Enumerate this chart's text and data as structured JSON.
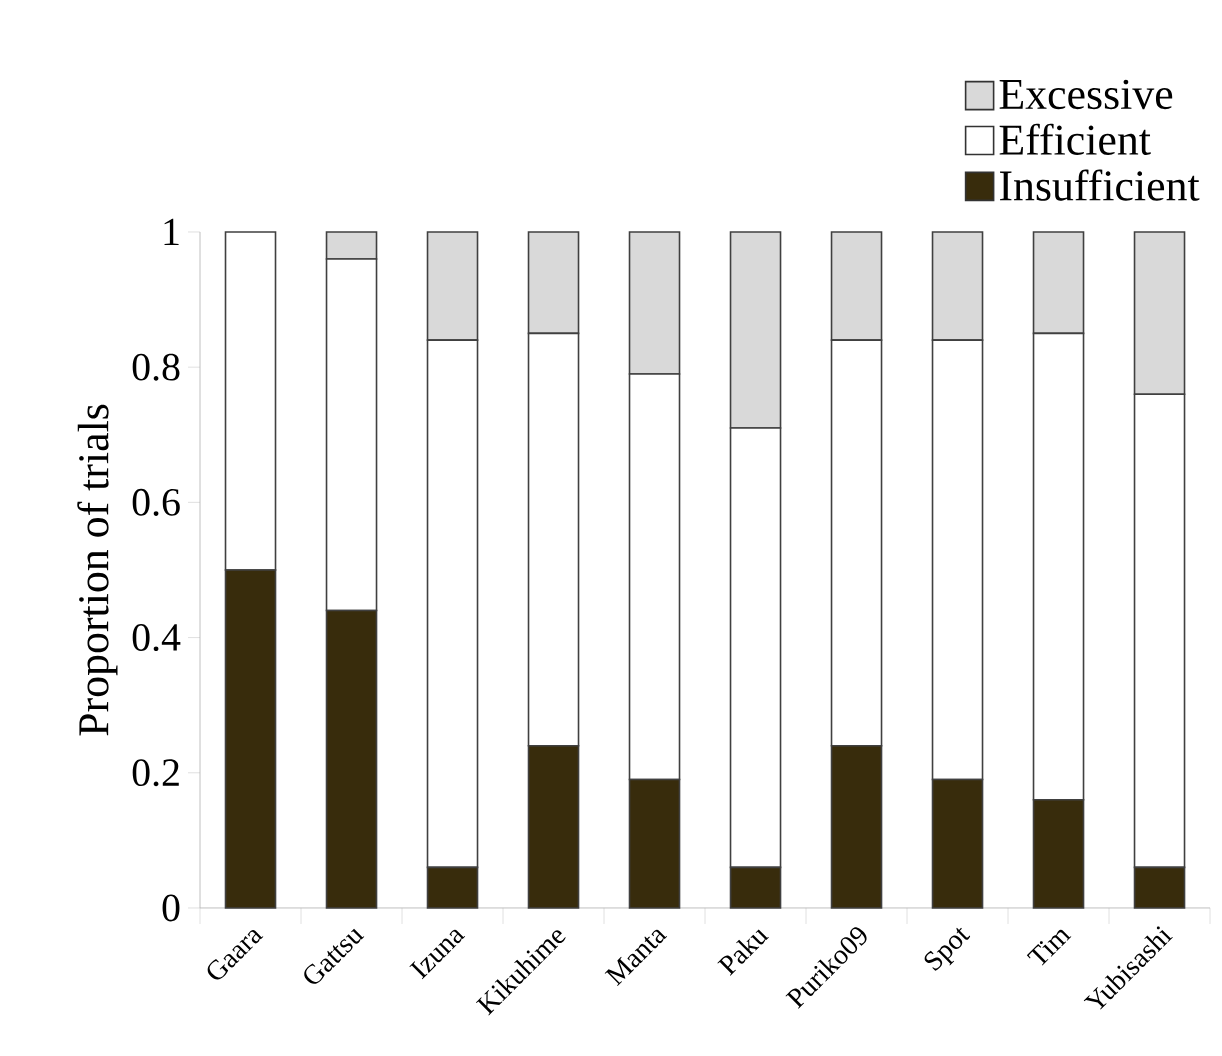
{
  "chart_data": {
    "type": "bar",
    "stacked": true,
    "ylabel": "Proportion of trials",
    "categories": [
      "Gaara",
      "Gattsu",
      "Izuna",
      "Kikuhime",
      "Manta",
      "Paku",
      "Puriko09",
      "Spot",
      "Tim",
      "Yubisashi"
    ],
    "series": [
      {
        "name": "Insufficient",
        "color": "#382c0c",
        "values": [
          0.5,
          0.44,
          0.06,
          0.24,
          0.19,
          0.06,
          0.24,
          0.19,
          0.16,
          0.06
        ]
      },
      {
        "name": "Efficient",
        "color": "#ffffff",
        "values": [
          0.5,
          0.52,
          0.78,
          0.61,
          0.6,
          0.65,
          0.6,
          0.65,
          0.69,
          0.7
        ]
      },
      {
        "name": "Excessive",
        "color": "#d9d9d9",
        "values": [
          0,
          0.04,
          0.16,
          0.15,
          0.21,
          0.29,
          0.16,
          0.16,
          0.15,
          0.24
        ]
      }
    ],
    "ylim": [
      0,
      1
    ],
    "yticks": [
      0,
      0.2,
      0.4,
      0.6,
      0.8,
      1
    ],
    "grid": false,
    "legend": "top right"
  }
}
